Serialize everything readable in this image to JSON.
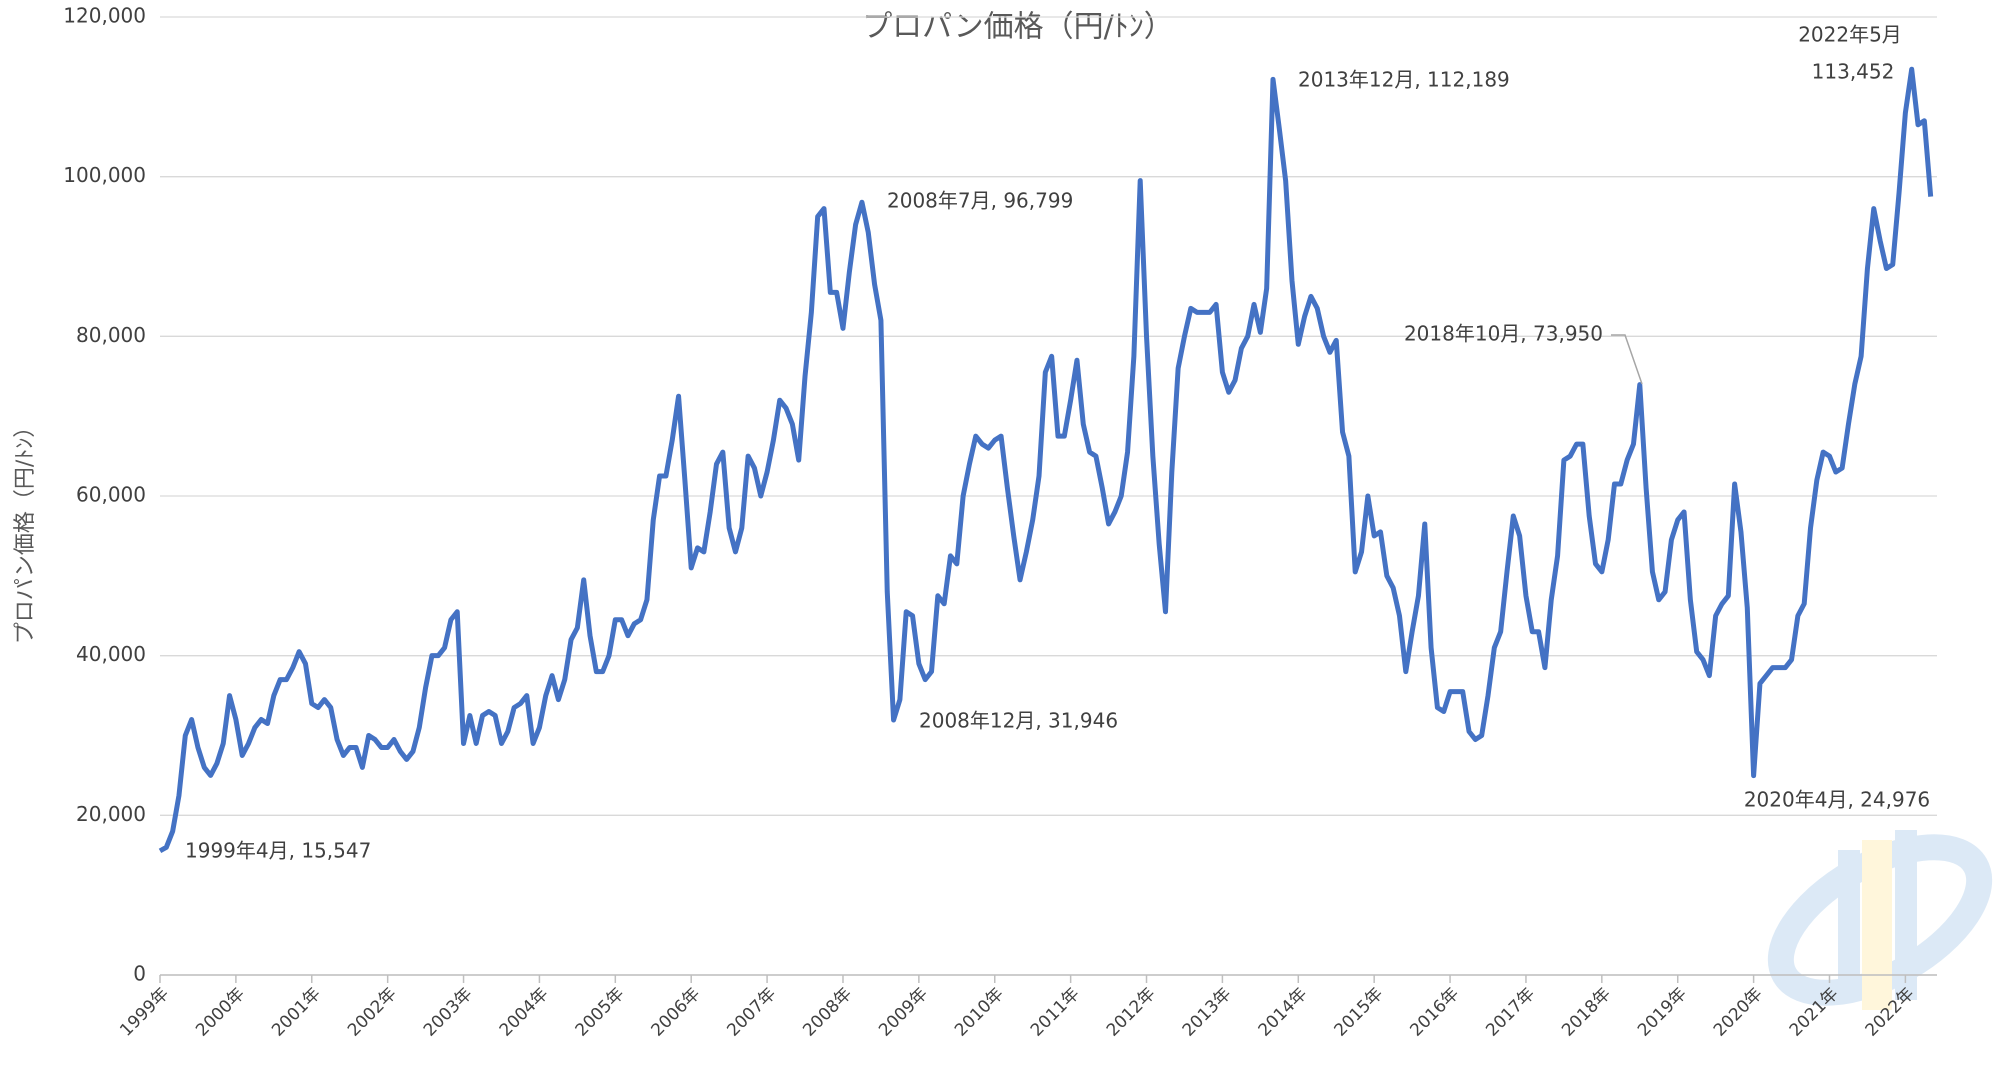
{
  "chart_data": {
    "type": "line",
    "title": "プロパン価格（円/ﾄﾝ）",
    "y_label": "プロパン価格（円/ﾄﾝ）",
    "categories": [
      "1999年",
      null,
      null,
      null,
      null,
      null,
      null,
      null,
      null,
      null,
      null,
      null,
      "2000年",
      null,
      null,
      null,
      null,
      null,
      null,
      null,
      null,
      null,
      null,
      null,
      "2001年",
      null,
      null,
      null,
      null,
      null,
      null,
      null,
      null,
      null,
      null,
      null,
      "2002年",
      null,
      null,
      null,
      null,
      null,
      null,
      null,
      null,
      null,
      null,
      null,
      "2003年",
      null,
      null,
      null,
      null,
      null,
      null,
      null,
      null,
      null,
      null,
      null,
      "2004年",
      null,
      null,
      null,
      null,
      null,
      null,
      null,
      null,
      null,
      null,
      null,
      "2005年",
      null,
      null,
      null,
      null,
      null,
      null,
      null,
      null,
      null,
      null,
      null,
      "2006年",
      null,
      null,
      null,
      null,
      null,
      null,
      null,
      null,
      null,
      null,
      null,
      "2007年",
      null,
      null,
      null,
      null,
      null,
      null,
      null,
      null,
      null,
      null,
      null,
      "2008年",
      null,
      null,
      null,
      null,
      null,
      null,
      null,
      null,
      null,
      null,
      null,
      "2009年",
      null,
      null,
      null,
      null,
      null,
      null,
      null,
      null,
      null,
      null,
      null,
      "2010年",
      null,
      null,
      null,
      null,
      null,
      null,
      null,
      null,
      null,
      null,
      null,
      "2011年",
      null,
      null,
      null,
      null,
      null,
      null,
      null,
      null,
      null,
      null,
      null,
      "2012年",
      null,
      null,
      null,
      null,
      null,
      null,
      null,
      null,
      null,
      null,
      null,
      "2013年",
      null,
      null,
      null,
      null,
      null,
      null,
      null,
      null,
      null,
      null,
      null,
      "2014年",
      null,
      null,
      null,
      null,
      null,
      null,
      null,
      null,
      null,
      null,
      null,
      "2015年",
      null,
      null,
      null,
      null,
      null,
      null,
      null,
      null,
      null,
      null,
      null,
      "2016年",
      null,
      null,
      null,
      null,
      null,
      null,
      null,
      null,
      null,
      null,
      null,
      "2017年",
      null,
      null,
      null,
      null,
      null,
      null,
      null,
      null,
      null,
      null,
      null,
      "2018年",
      null,
      null,
      null,
      null,
      null,
      null,
      null,
      null,
      null,
      null,
      null,
      "2019年",
      null,
      null,
      null,
      null,
      null,
      null,
      null,
      null,
      null,
      null,
      null,
      "2020年",
      null,
      null,
      null,
      null,
      null,
      null,
      null,
      null,
      null,
      null,
      null,
      "2021年",
      null,
      null,
      null,
      null,
      null,
      null,
      null,
      null,
      null,
      null,
      null,
      "2022年",
      null,
      null,
      null,
      null
    ],
    "series": [
      {
        "color": "#4472c4",
        "values": [
          15547,
          16000,
          18000,
          22500,
          30000,
          32000,
          28500,
          26000,
          25000,
          26500,
          29000,
          35000,
          32000,
          27500,
          29000,
          31000,
          32000,
          31500,
          35000,
          37000,
          37000,
          38500,
          40500,
          39000,
          34000,
          33500,
          34500,
          33500,
          29500,
          27500,
          28500,
          28500,
          26000,
          30000,
          29500,
          28500,
          28500,
          29500,
          28000,
          27000,
          28000,
          31000,
          36000,
          40000,
          40000,
          41000,
          44500,
          45500,
          29000,
          32500,
          29000,
          32500,
          33000,
          32500,
          29000,
          30500,
          33500,
          34000,
          35000,
          29000,
          31000,
          35000,
          37500,
          34500,
          37000,
          42000,
          43500,
          49500,
          42500,
          38000,
          38000,
          40000,
          44500,
          44500,
          42500,
          44000,
          44500,
          47000,
          57000,
          62500,
          62500,
          67000,
          72500,
          62000,
          51000,
          53500,
          53000,
          58000,
          64000,
          65500,
          56000,
          53000,
          56000,
          65000,
          63500,
          60000,
          63000,
          67000,
          72000,
          71000,
          69000,
          64500,
          75000,
          83000,
          95000,
          96000,
          85500,
          85500,
          81000,
          88000,
          94000,
          96799,
          93000,
          86500,
          82000,
          48000,
          31946,
          34500,
          45500,
          45000,
          39000,
          37000,
          38000,
          47500,
          46500,
          52500,
          51500,
          60000,
          64000,
          67500,
          66500,
          66000,
          67000,
          67500,
          61000,
          55000,
          49500,
          53000,
          57000,
          62500,
          75500,
          77500,
          67500,
          67500,
          72000,
          77000,
          69000,
          65500,
          65000,
          61000,
          56500,
          58000,
          60000,
          65500,
          77500,
          99500,
          80000,
          65000,
          54000,
          45500,
          63000,
          76000,
          80000,
          83500,
          83000,
          83000,
          83000,
          84000,
          75500,
          73000,
          74500,
          78500,
          80000,
          84000,
          80500,
          86000,
          112189,
          106000,
          99500,
          87000,
          79000,
          82500,
          85000,
          83500,
          80000,
          78000,
          79500,
          68000,
          65000,
          50500,
          53000,
          60000,
          55000,
          55500,
          50000,
          48500,
          45000,
          38000,
          43000,
          47500,
          56500,
          41000,
          33500,
          33000,
          35500,
          35500,
          35500,
          30500,
          29500,
          30000,
          35000,
          41000,
          43000,
          50500,
          57500,
          55000,
          47500,
          43000,
          43000,
          38500,
          47000,
          52500,
          64500,
          65000,
          66500,
          66500,
          57500,
          51500,
          50500,
          54500,
          61500,
          61500,
          64500,
          66500,
          73950,
          61000,
          50500,
          47000,
          48000,
          54500,
          57000,
          58000,
          47000,
          40500,
          39500,
          37500,
          45000,
          46500,
          47500,
          61500,
          55500,
          46000,
          24976,
          36500,
          37500,
          38500,
          38500,
          38500,
          39500,
          45000,
          46500,
          56000,
          62000,
          65500,
          65000,
          63000,
          63500,
          69000,
          74000,
          77500,
          88500,
          96000,
          92000,
          88500,
          89000,
          98000,
          108000,
          113452,
          106500,
          107000,
          97500
        ]
      }
    ],
    "annotations": [
      "1999年4月, 15,547",
      "2008年7月, 96,799",
      "2008年12月, 31,946",
      "2013年12月, 112,189",
      "2018年10月, 73,950",
      "2020年4月, 24,976",
      "2022年5月",
      "113,452"
    ],
    "ylim": [
      0,
      120000
    ],
    "yticks": [
      0,
      {
        "value": 20000,
        "label": "20,000"
      },
      {
        "value": 40000,
        "label": "40,000"
      },
      {
        "value": 60000,
        "label": "60,000"
      },
      {
        "value": 80000,
        "label": "80,000"
      },
      {
        "value": 100000,
        "label": "100,000"
      },
      {
        "value": 120000,
        "label": "120,000"
      }
    ],
    "grid": true
  }
}
